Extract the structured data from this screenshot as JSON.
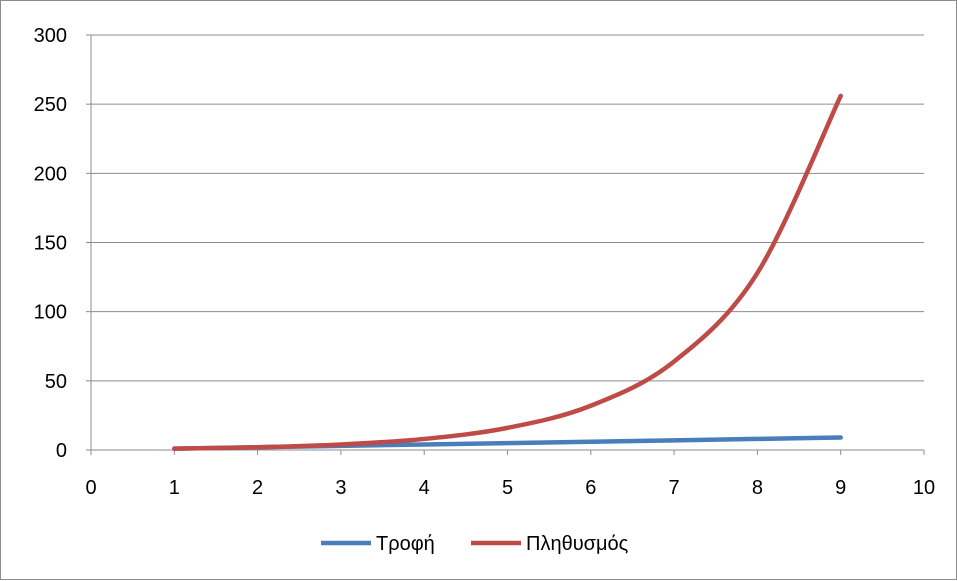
{
  "chart_data": {
    "type": "scatter",
    "title": "",
    "xlabel": "",
    "ylabel": "",
    "xlim": [
      0,
      10
    ],
    "ylim": [
      0,
      300
    ],
    "x_ticks": [
      0,
      1,
      2,
      3,
      4,
      5,
      6,
      7,
      8,
      9,
      10
    ],
    "y_ticks": [
      0,
      50,
      100,
      150,
      200,
      250,
      300
    ],
    "grid": "horizontal",
    "legend_position": "bottom",
    "series": [
      {
        "name": "Τροφή",
        "color": "#4a7ebb",
        "smooth": true,
        "x": [
          1,
          2,
          3,
          4,
          5,
          6,
          7,
          8,
          9
        ],
        "y": [
          1,
          2,
          3,
          4,
          5,
          6,
          7,
          8,
          9
        ]
      },
      {
        "name": "Πληθυσμός",
        "color": "#be4b48",
        "smooth": true,
        "x": [
          1,
          2,
          3,
          4,
          5,
          6,
          7,
          8,
          9
        ],
        "y": [
          1,
          2,
          4,
          8,
          16,
          32,
          64,
          128,
          256
        ]
      }
    ]
  }
}
